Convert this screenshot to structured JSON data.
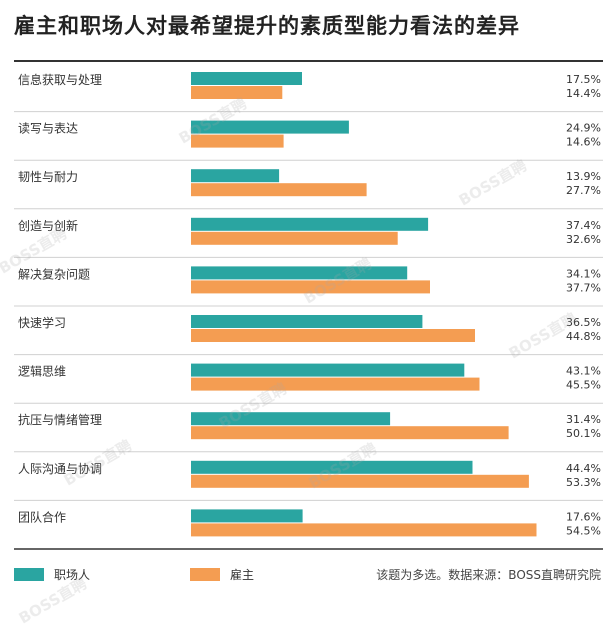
{
  "title": "雇主和职场人对最希望提升的素质型能力看法的差异",
  "watermark": "BOSS直聘",
  "legend": [
    {
      "name": "职场人",
      "color": "#2aa5a1"
    },
    {
      "name": "雇主",
      "color": "#f49d52"
    }
  ],
  "note": "该题为多选。数据来源：BOSS直聘研究院",
  "chart_data": {
    "type": "bar",
    "orientation": "horizontal",
    "categories": [
      "信息获取与处理",
      "读写与表达",
      "韧性与耐力",
      "创造与创新",
      "解决复杂问题",
      "快速学习",
      "逻辑思维",
      "抗压与情绪管理",
      "人际沟通与协调",
      "团队合作"
    ],
    "series": [
      {
        "name": "职场人",
        "color": "#2aa5a1",
        "values": [
          17.5,
          24.9,
          13.9,
          37.4,
          34.1,
          36.5,
          43.1,
          31.4,
          44.4,
          17.6
        ]
      },
      {
        "name": "雇主",
        "color": "#f49d52",
        "values": [
          14.4,
          14.6,
          27.7,
          32.6,
          37.7,
          44.8,
          45.5,
          50.1,
          53.3,
          54.5
        ]
      }
    ],
    "value_format": "percent_one_decimal",
    "grid": false
  }
}
